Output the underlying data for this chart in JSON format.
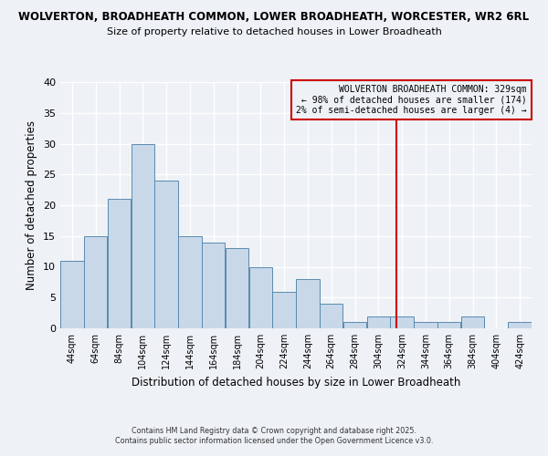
{
  "title_line1": "WOLVERTON, BROADHEATH COMMON, LOWER BROADHEATH, WORCESTER, WR2 6RL",
  "title_line2": "Size of property relative to detached houses in Lower Broadheath",
  "xlabel": "Distribution of detached houses by size in Lower Broadheath",
  "ylabel": "Number of detached properties",
  "bin_edges": [
    44,
    64,
    84,
    104,
    124,
    144,
    164,
    184,
    204,
    224,
    244,
    264,
    284,
    304,
    324,
    344,
    364,
    384,
    404,
    424,
    444
  ],
  "counts": [
    11,
    15,
    21,
    30,
    24,
    15,
    14,
    13,
    10,
    6,
    8,
    4,
    1,
    2,
    2,
    1,
    1,
    2,
    0,
    1
  ],
  "bar_facecolor": "#c8d8e8",
  "bar_edgecolor": "#5a8ab0",
  "vline_x": 329,
  "vline_color": "#cc0000",
  "ylim": [
    0,
    40
  ],
  "yticks": [
    0,
    5,
    10,
    15,
    20,
    25,
    30,
    35,
    40
  ],
  "annotation_text": "WOLVERTON BROADHEATH COMMON: 329sqm\n← 98% of detached houses are smaller (174)\n2% of semi-detached houses are larger (4) →",
  "annotation_box_edgecolor": "#cc0000",
  "background_color": "#eef2f6",
  "grid_color": "#ffffff",
  "footnote": "Contains HM Land Registry data © Crown copyright and database right 2025.\nContains public sector information licensed under the Open Government Licence v3.0."
}
